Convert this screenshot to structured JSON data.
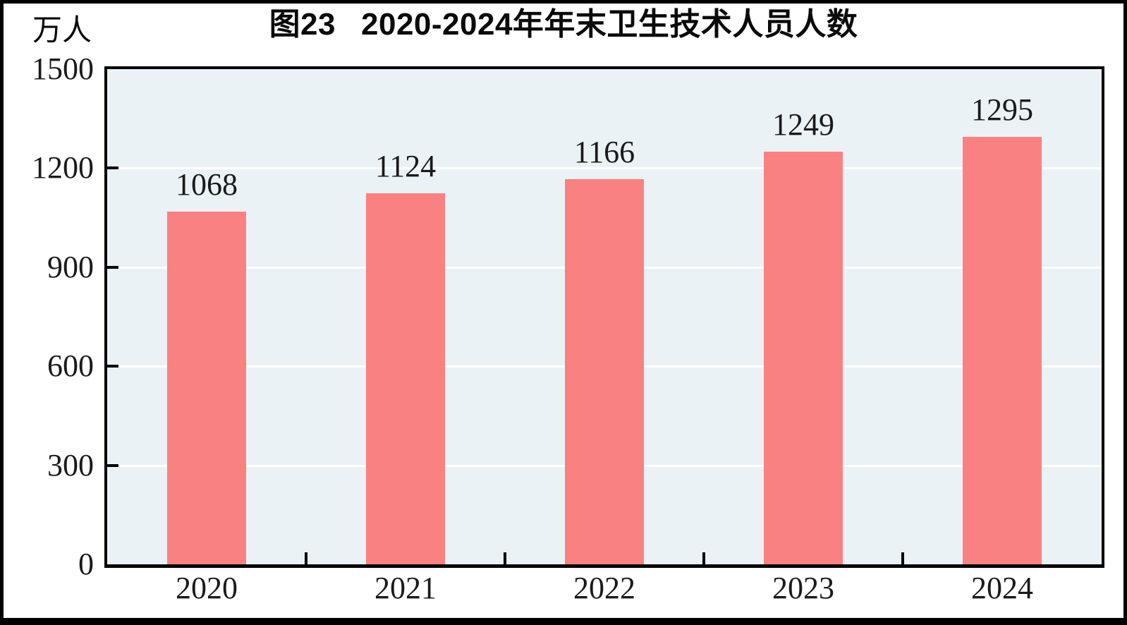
{
  "figure": {
    "title_prefix": "图23",
    "title_main": "2020-2024年年末卫生技术人员人数",
    "unit_label": "万人"
  },
  "chart_data": {
    "type": "bar",
    "title": "图23 2020-2024年年末卫生技术人员人数",
    "categories": [
      "2020",
      "2021",
      "2022",
      "2023",
      "2024"
    ],
    "values": [
      1068,
      1124,
      1166,
      1249,
      1295
    ],
    "data_labels": [
      "1068",
      "1124",
      "1166",
      "1249",
      "1295"
    ],
    "xlabel": "",
    "ylabel": "万人",
    "ylim": [
      0,
      1500
    ],
    "yticks": [
      0,
      300,
      600,
      900,
      1200,
      1500
    ],
    "grid": "horizontal-white",
    "legend_position": "none",
    "bar_color": "#FA8181",
    "plot_background": "#EAF2F6",
    "gridline_color": "#FFFFFF",
    "axis_color": "#000000",
    "text_color": "#1a1a1a"
  }
}
